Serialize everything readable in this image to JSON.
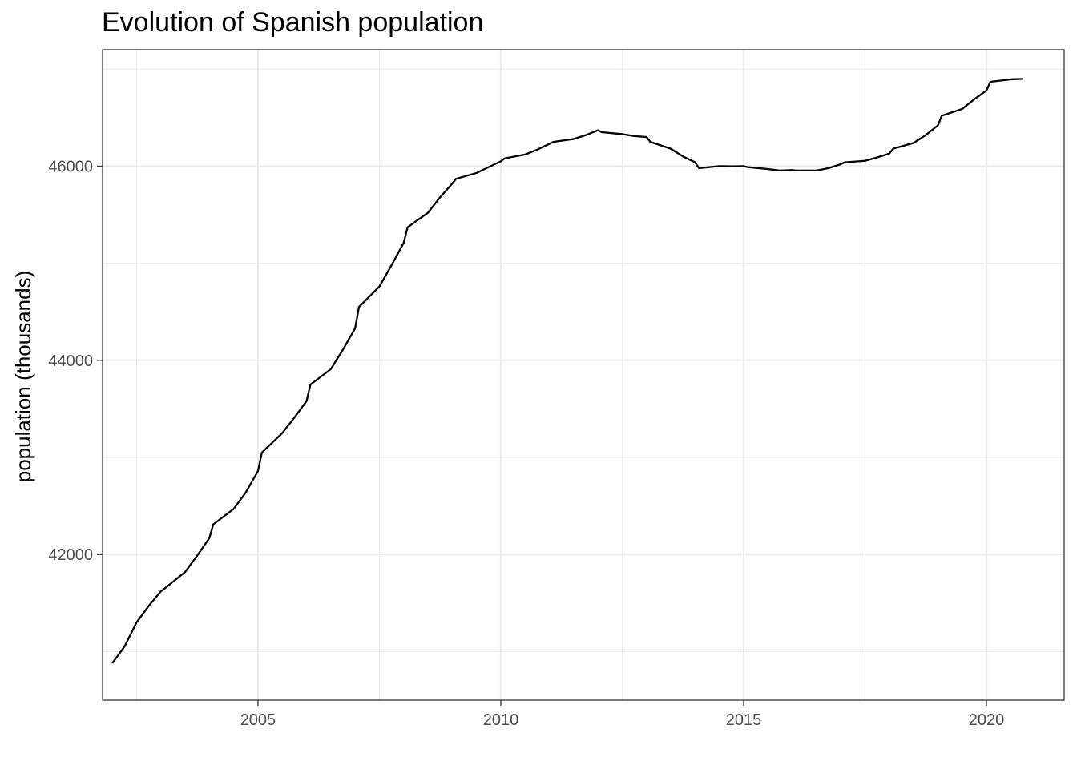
{
  "chart_data": {
    "type": "line",
    "title": "Evolution of Spanish population",
    "xlabel": "",
    "ylabel": "population (thousands)",
    "x_ticks": [
      2005,
      2010,
      2015,
      2020
    ],
    "y_ticks": [
      42000,
      44000,
      46000
    ],
    "xlim": [
      2001.8,
      2021.6
    ],
    "ylim": [
      40500,
      47200
    ],
    "grid": true,
    "legend": "none",
    "line_color": "#000000",
    "series": [
      {
        "x": [
          2002.0,
          2002.25,
          2002.5,
          2002.75,
          2003.0,
          2003.08,
          2003.5,
          2003.75,
          2004.0,
          2004.08,
          2004.5,
          2004.75,
          2005.0,
          2005.08,
          2005.5,
          2005.75,
          2006.0,
          2006.08,
          2006.5,
          2006.75,
          2007.0,
          2007.08,
          2007.5,
          2007.75,
          2008.0,
          2008.08,
          2008.5,
          2008.75,
          2009.0,
          2009.08,
          2009.5,
          2009.75,
          2010.0,
          2010.08,
          2010.5,
          2010.75,
          2011.0,
          2011.08,
          2011.5,
          2011.75,
          2012.0,
          2012.08,
          2012.5,
          2012.75,
          2013.0,
          2013.08,
          2013.5,
          2013.75,
          2014.0,
          2014.08,
          2014.5,
          2014.75,
          2015.0,
          2015.08,
          2015.5,
          2015.75,
          2016.0,
          2016.08,
          2016.5,
          2016.75,
          2017.0,
          2017.08,
          2017.5,
          2017.75,
          2018.0,
          2018.08,
          2018.5,
          2018.75,
          2019.0,
          2019.08,
          2019.5,
          2019.75,
          2020.0,
          2020.08,
          2020.5,
          2020.75
        ],
        "y": [
          40880,
          41050,
          41300,
          41470,
          41620,
          41650,
          41820,
          41990,
          42170,
          42310,
          42470,
          42640,
          42860,
          43050,
          43250,
          43410,
          43580,
          43750,
          43910,
          44110,
          44330,
          44550,
          44760,
          44980,
          45210,
          45370,
          45520,
          45680,
          45820,
          45870,
          45930,
          45990,
          46050,
          46080,
          46120,
          46170,
          46230,
          46250,
          46280,
          46320,
          46370,
          46350,
          46330,
          46310,
          46300,
          46250,
          46180,
          46100,
          46040,
          45980,
          46000,
          45998,
          46000,
          45990,
          45970,
          45955,
          45960,
          45955,
          45955,
          45980,
          46020,
          46040,
          46055,
          46090,
          46130,
          46180,
          46240,
          46320,
          46420,
          46520,
          46590,
          46690,
          46780,
          46870,
          46895,
          46900
        ]
      }
    ]
  }
}
